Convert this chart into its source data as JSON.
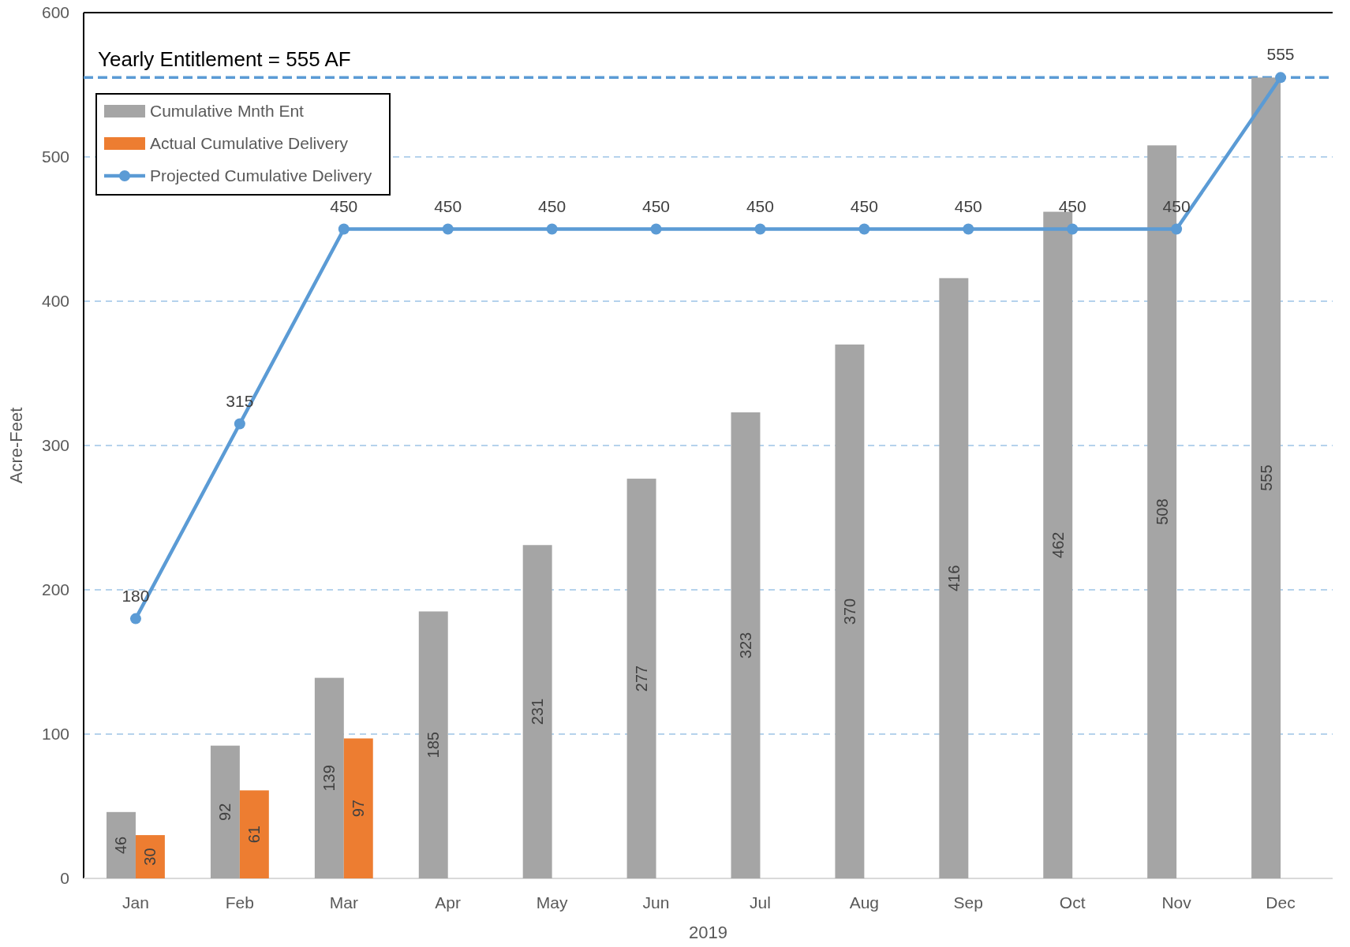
{
  "chart_data": {
    "type": "bar",
    "xlabel": "2019",
    "ylabel": "Acre-Feet",
    "categories": [
      "Jan",
      "Feb",
      "Mar",
      "Apr",
      "May",
      "Jun",
      "Jul",
      "Aug",
      "Sep",
      "Oct",
      "Nov",
      "Dec"
    ],
    "series": [
      {
        "name": "Cumulative Mnth Ent",
        "color": "#a5a5a5",
        "values": [
          46,
          92,
          139,
          185,
          231,
          277,
          323,
          370,
          416,
          462,
          508,
          555
        ]
      },
      {
        "name": "Actual Cumulative Delivery",
        "color": "#ed7d31",
        "values": [
          30,
          61,
          97,
          null,
          null,
          null,
          null,
          null,
          null,
          null,
          null,
          null
        ]
      },
      {
        "name": "Projected Cumulative Delivery",
        "type": "line",
        "color": "#5b9bd5",
        "values": [
          180,
          315,
          450,
          450,
          450,
          450,
          450,
          450,
          450,
          450,
          450,
          555
        ]
      }
    ],
    "ylim": [
      0,
      600
    ],
    "yticks": [
      0,
      100,
      200,
      300,
      400,
      500,
      600
    ],
    "grid": "y",
    "legend": "top left",
    "marker": "circle",
    "data_labels": true,
    "ref_lines": [
      {
        "axis": "y",
        "value": 555,
        "label": "Yearly Entitlement = 555 AF",
        "color": "#5b9bd5",
        "line_style": "dashed"
      }
    ]
  }
}
